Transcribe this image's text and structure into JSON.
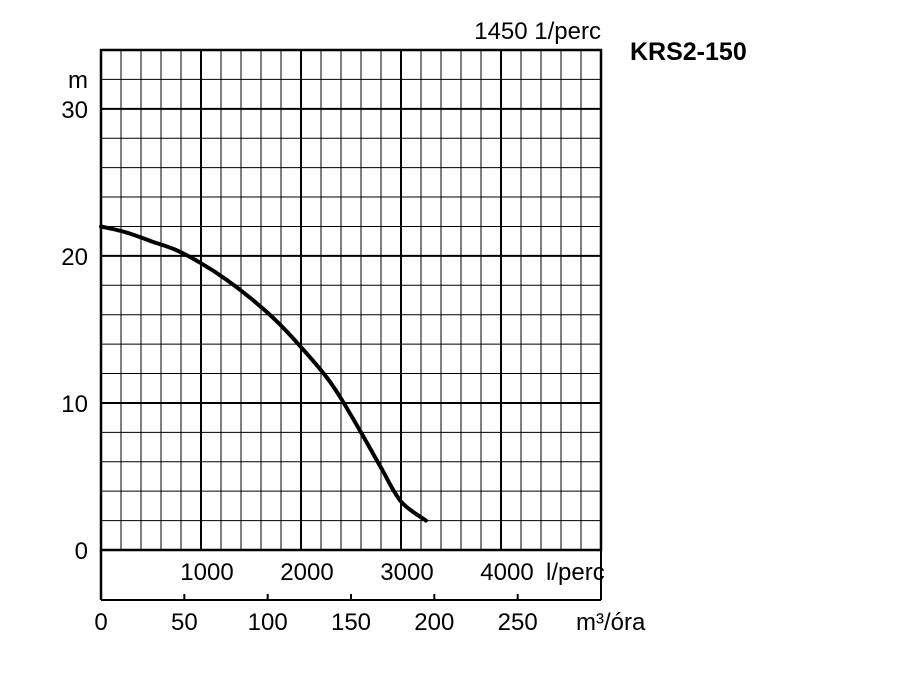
{
  "chart_data": {
    "type": "line",
    "title": "KRS2-150",
    "speed_label": "1450 1/perc",
    "ylabel": "m",
    "ylim": [
      0,
      34
    ],
    "yticks": [
      0,
      10,
      20,
      30
    ],
    "xlim": [
      0,
      5000
    ],
    "x_top_ticks": [
      1000,
      2000,
      3000,
      4000
    ],
    "x_top_unit": "l/perc",
    "x_bottom_ticks": [
      0,
      50,
      100,
      150,
      200,
      250
    ],
    "x_bottom_unit": "m³/óra",
    "grid": true,
    "series": [
      {
        "x": [
          0,
          250,
          500,
          750,
          1000,
          1250,
          1500,
          1750,
          2000,
          2250,
          2400,
          2600,
          2800,
          3000,
          3250
        ],
        "y": [
          22,
          21.6,
          21.0,
          20.4,
          19.5,
          18.4,
          17.1,
          15.6,
          13.8,
          11.8,
          10.3,
          8.0,
          5.6,
          3.3,
          2.0
        ]
      }
    ]
  }
}
